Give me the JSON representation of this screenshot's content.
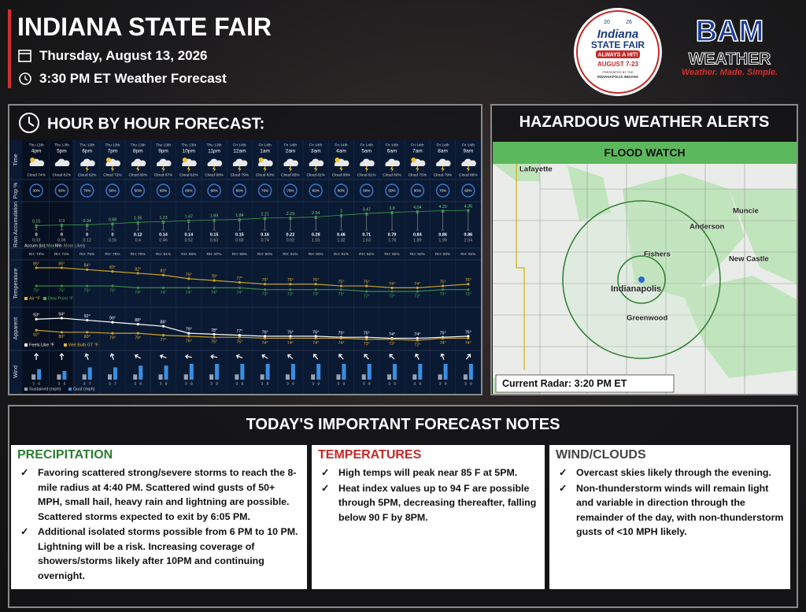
{
  "header": {
    "title": "INDIANA STATE FAIR",
    "date": "Thursday, August 13, 2026",
    "time_line": "3:30 PM ET Weather Forecast"
  },
  "logos": {
    "fair": {
      "year_left": "20",
      "year_right": "26",
      "name1": "Indiana",
      "name2": "STATE FAIR",
      "tagline": "ALWAYS A HIT!",
      "dates": "AUGUST 7-23",
      "presenter": "PRESENTED BY THE",
      "sponsor": "INDIANAPOLIS INDIANS"
    },
    "bam": {
      "mark": "BAM",
      "word": "WEATHER",
      "slogan": "Weather. Made. Simple."
    }
  },
  "hourly": {
    "title": "HOUR BY HOUR FORECAST:",
    "row_labels": {
      "time": "Time",
      "pop": "Pop %",
      "accum": "Rain Accumulation",
      "temperature": "Temperature",
      "apparent": "Apparent",
      "wind": "Wind"
    },
    "days": [
      "Thu 13th",
      "Thu 13th",
      "Thu 13th",
      "Thu 13th",
      "Thu 13th",
      "Thu 13th",
      "Thu 13th",
      "Thu 13th",
      "Fri 14th",
      "Fri 14th",
      "Fri 14th",
      "Fri 14th",
      "Fri 14th",
      "Fri 14th",
      "Fri 14th",
      "Fri 14th",
      "Fri 14th",
      "Fri 14th"
    ],
    "hours": [
      "4pm",
      "5pm",
      "6pm",
      "7pm",
      "8pm",
      "9pm",
      "10pm",
      "11pm",
      "12am",
      "1am",
      "2am",
      "3am",
      "4am",
      "5am",
      "6am",
      "7am",
      "8am",
      "9am"
    ],
    "cloud": [
      "Cloud 74%",
      "Cloud 82%",
      "Cloud 62%",
      "Cloud 72%",
      "Cloud 89%",
      "Cloud 87%",
      "Cloud 82%",
      "Cloud 90%",
      "Cloud 79%",
      "Cloud 83%",
      "Cloud 85%",
      "Cloud 81%",
      "Cloud 89%",
      "Cloud 81%",
      "Cloud 80%",
      "Cloud 75%",
      "Cloud 79%",
      "Cloud 86%"
    ],
    "pop": [
      "30%",
      "30%",
      "70%",
      "50%",
      "50%",
      "60%",
      "60%",
      "60%",
      "60%",
      "70%",
      "70%",
      "60%",
      "60%",
      "60%",
      "50%",
      "60%",
      "70%",
      "60%"
    ],
    "accum_max": [
      0.15,
      0.3,
      0.34,
      0.68,
      1.05,
      1.23,
      1.47,
      1.69,
      1.84,
      2.21,
      2.29,
      2.54,
      3,
      3.47,
      3.8,
      4.04,
      4.23,
      4.36
    ],
    "accum_min": [
      0,
      0,
      0,
      0,
      0.12,
      0.14,
      0.14,
      0.15,
      0.15,
      0.16,
      0.22,
      0.28,
      0.46,
      0.71,
      0.79,
      0.84,
      0.86,
      0.86
    ],
    "accum_likely": [
      0.03,
      0.06,
      0.12,
      0.16,
      0.4,
      0.46,
      0.52,
      0.63,
      0.68,
      0.74,
      0.92,
      1.03,
      1.32,
      1.63,
      1.78,
      1.89,
      1.99,
      2.04
    ],
    "accum_legend": {
      "label": "Accum (in):",
      "max": "Max",
      "min": "Min",
      "likely": "Most Likely"
    },
    "rh": [
      "RH: 73%",
      "RH: 74%",
      "RH: 75%",
      "RH: 78%",
      "RH: 79%",
      "RH: 81%",
      "RH: 86%",
      "RH: 87%",
      "RH: 89%",
      "RH: 90%",
      "RH: 91%",
      "RH: 90%",
      "RH: 91%",
      "RH: 92%",
      "RH: 92%",
      "RH: 92%",
      "RH: 93%",
      "RH: 91%"
    ],
    "temp_air": [
      85,
      85,
      84,
      83,
      82,
      81,
      79,
      78,
      77,
      76,
      76,
      76,
      75,
      75,
      74,
      74,
      75,
      76
    ],
    "temp_air_labels": [
      "85°",
      "85°",
      "84°",
      "83°",
      "82°",
      "81°",
      "79°",
      "78°",
      "77°",
      "76°",
      "76°",
      "76°",
      "75°",
      "75°",
      "74°",
      "74°",
      "75°",
      "76°"
    ],
    "temp_dew": [
      75,
      75,
      75,
      75,
      74,
      74,
      74,
      74,
      74,
      73,
      73,
      73,
      73,
      72,
      72,
      72,
      73,
      73
    ],
    "temp_dew_labels": [
      "75°",
      "75°",
      "75°",
      "75°",
      "74°",
      "74°",
      "74°",
      "74°",
      "74°",
      "73°",
      "73°",
      "73°",
      "73°",
      "72°",
      "72°",
      "72°",
      "73°",
      "73°"
    ],
    "temp_legend": {
      "air": "Air °F",
      "dew": "Dew Point °F"
    },
    "feels": [
      93,
      94,
      92,
      90,
      88,
      86,
      79,
      78,
      77,
      76,
      76,
      76,
      75,
      75,
      74,
      74,
      75,
      76
    ],
    "feels_labels": [
      "93°",
      "94°",
      "92°",
      "90°",
      "88°",
      "86°",
      "79°",
      "78°",
      "77°",
      "76°",
      "76°",
      "76°",
      "75°",
      "75°",
      "74°",
      "74°",
      "75°",
      "76°"
    ],
    "wetbulb": [
      82,
      80,
      80,
      79,
      79,
      77,
      76,
      75,
      75,
      74,
      74,
      74,
      74,
      73,
      73,
      72,
      74,
      74
    ],
    "wetbulb_labels": [
      "82°",
      "80°",
      "80°",
      "79°",
      "79°",
      "77°",
      "76°",
      "75°",
      "75°",
      "74°",
      "74°",
      "74°",
      "74°",
      "73°",
      "73°",
      "72°",
      "74°",
      "74°"
    ],
    "apparent_legend": {
      "feels": "Feels Like °F",
      "wet": "Wet Bulb GT °F"
    },
    "wind_sustained": [
      3,
      3,
      3,
      3,
      3,
      3,
      3,
      3,
      3,
      3,
      3,
      3,
      3,
      3,
      3,
      3,
      3,
      3
    ],
    "wind_gust": [
      6,
      5,
      7,
      7,
      8,
      8,
      9,
      9,
      9,
      9,
      9,
      9,
      9,
      9,
      9,
      9,
      9,
      9
    ],
    "wind_legend": {
      "sustained": "Sustained (mph)",
      "gust": "Gust (mph)"
    }
  },
  "alerts": {
    "title": "HAZARDOUS WEATHER ALERTS",
    "alert": "FLOOD WATCH",
    "radar": "Current Radar: 3:20 PM ET",
    "cities": [
      "Lafayette",
      "Muncie",
      "Anderson",
      "Fishers",
      "New Castle",
      "Indianapolis",
      "Greenwood"
    ]
  },
  "notes": {
    "title": "TODAY'S IMPORTANT FORECAST NOTES",
    "sections": [
      {
        "heading": "PRECIPITATION",
        "items": [
          "Favoring scattered strong/severe storms to reach the 8-mile radius at 4:40 PM. Scattered wind gusts of 50+ MPH, small hail, heavy rain and lightning are possible. Scattered storms expected to exit by 6:05 PM.",
          "Additional isolated storms possible from 6 PM to 10 PM. Lightning will be a risk. Increasing coverage of showers/storms likely after 10PM and continuing overnight."
        ]
      },
      {
        "heading": "TEMPERATURES",
        "items": [
          "High temps will peak near 85 F at 5PM.",
          "Heat index values up to 94 F are possible through 5PM, decreasing thereafter, falling below 90 F by 8PM."
        ]
      },
      {
        "heading": "WIND/CLOUDS",
        "items": [
          "Overcast skies likely through the evening.",
          "Non-thunderstorm winds will remain light and variable in direction through the remainder of the day, with non-thunderstorm gusts of <10 MPH likely."
        ]
      }
    ]
  }
}
